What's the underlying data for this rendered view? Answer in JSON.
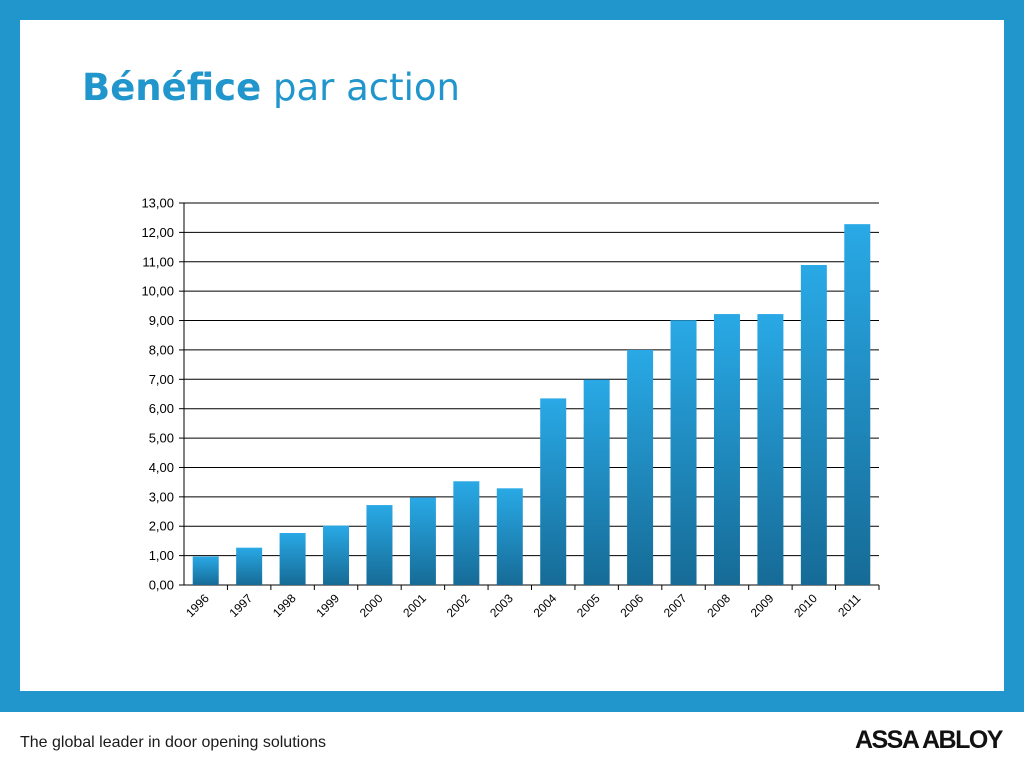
{
  "title": {
    "bold": "Bénéfice",
    "rest": "par action"
  },
  "footer": {
    "tagline": "The global leader in door opening solutions",
    "logo": "ASSA ABLOY"
  },
  "colors": {
    "frame": "#2196cc",
    "bar_top": "#29a9e6",
    "bar_bottom": "#166b96",
    "title": "#2196cc"
  },
  "chart_data": {
    "type": "bar",
    "categories": [
      "1996",
      "1997",
      "1998",
      "1999",
      "2000",
      "2001",
      "2002",
      "2003",
      "2004",
      "2005",
      "2006",
      "2007",
      "2008",
      "2009",
      "2010",
      "2011"
    ],
    "values": [
      0.97,
      1.27,
      1.77,
      2.02,
      2.72,
      2.98,
      3.53,
      3.29,
      6.35,
      6.99,
      8.0,
      9.01,
      9.22,
      9.22,
      10.89,
      12.28
    ],
    "ylim": [
      0,
      13
    ],
    "yticks": [
      "0,00",
      "1,00",
      "2,00",
      "3,00",
      "4,00",
      "5,00",
      "6,00",
      "7,00",
      "8,00",
      "9,00",
      "10,00",
      "11,00",
      "12,00",
      "13,00"
    ],
    "grid": true,
    "xlabel": "",
    "ylabel": ""
  }
}
